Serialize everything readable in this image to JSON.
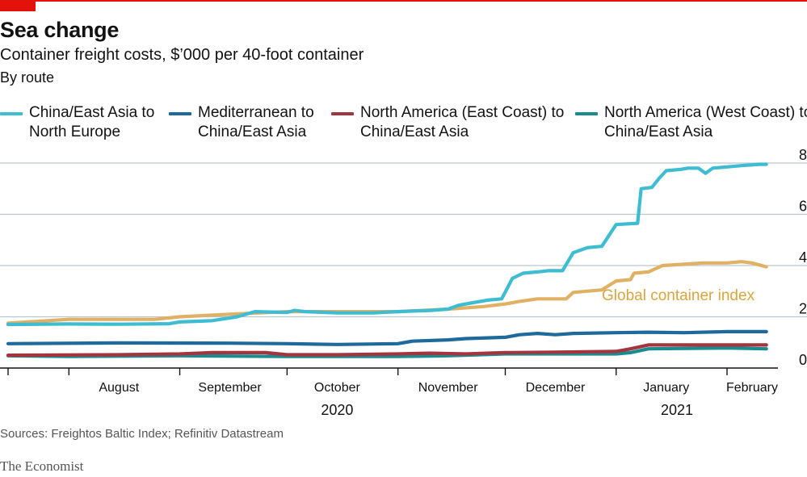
{
  "header": {
    "title": "Sea change",
    "subtitle": "Container freight costs, $’000 per 40-foot container",
    "byline": "By route"
  },
  "footer": {
    "source": "Sources: Freightos Baltic Index; Refinitiv Datastream",
    "brand": "The Economist"
  },
  "colors": {
    "accent": "#e3120b",
    "grid": "#b7c6cf",
    "axis": "#121212"
  },
  "chart_data": {
    "type": "line",
    "title": "Sea change",
    "subtitle": "Container freight costs, $’000 per 40-foot container",
    "ylim": [
      0,
      8
    ],
    "y_ticks": [
      0,
      2,
      4,
      6,
      8
    ],
    "y_axis_side": "right",
    "grid": "horizontal",
    "x_range": [
      "2020-07-15",
      "2021-02-15"
    ],
    "month_boundaries": [
      "2020-08-01",
      "2020-09-01",
      "2020-10-01",
      "2020-11-01",
      "2020-12-01",
      "2021-01-01",
      "2021-02-01"
    ],
    "month_labels": [
      {
        "label": "August",
        "date": "2020-08-15"
      },
      {
        "label": "September",
        "date": "2020-09-15"
      },
      {
        "label": "October",
        "date": "2020-10-15"
      },
      {
        "label": "November",
        "date": "2020-11-15"
      },
      {
        "label": "December",
        "date": "2020-12-15"
      },
      {
        "label": "January",
        "date": "2021-01-15"
      },
      {
        "label": "February",
        "date": "2021-02-08"
      }
    ],
    "year_labels": [
      {
        "label": "2020",
        "date": "2020-10-15"
      },
      {
        "label": "2021",
        "date": "2021-01-18"
      }
    ],
    "legend_position": "top",
    "series": [
      {
        "name": "China/East Asia to North Europe",
        "legend_lines": [
          "China/East Asia to",
          "North Europe"
        ],
        "color": "#3ebcd2",
        "points": [
          [
            "2020-07-15",
            1.7
          ],
          [
            "2020-08-01",
            1.72
          ],
          [
            "2020-08-15",
            1.71
          ],
          [
            "2020-08-29",
            1.73
          ],
          [
            "2020-09-01",
            1.8
          ],
          [
            "2020-09-10",
            1.85
          ],
          [
            "2020-09-17",
            2.0
          ],
          [
            "2020-09-22",
            2.2
          ],
          [
            "2020-10-01",
            2.17
          ],
          [
            "2020-10-03",
            2.25
          ],
          [
            "2020-10-06",
            2.2
          ],
          [
            "2020-10-15",
            2.15
          ],
          [
            "2020-10-25",
            2.15
          ],
          [
            "2020-11-01",
            2.2
          ],
          [
            "2020-11-10",
            2.25
          ],
          [
            "2020-11-15",
            2.3
          ],
          [
            "2020-11-18",
            2.45
          ],
          [
            "2020-11-22",
            2.55
          ],
          [
            "2020-11-26",
            2.65
          ],
          [
            "2020-11-30",
            2.7
          ],
          [
            "2020-12-03",
            3.5
          ],
          [
            "2020-12-06",
            3.7
          ],
          [
            "2020-12-10",
            3.75
          ],
          [
            "2020-12-13",
            3.8
          ],
          [
            "2020-12-17",
            3.8
          ],
          [
            "2020-12-20",
            4.5
          ],
          [
            "2020-12-24",
            4.7
          ],
          [
            "2020-12-28",
            4.75
          ],
          [
            "2021-01-01",
            5.6
          ],
          [
            "2021-01-07",
            5.65
          ],
          [
            "2021-01-08",
            7.0
          ],
          [
            "2021-01-11",
            7.05
          ],
          [
            "2021-01-13",
            7.4
          ],
          [
            "2021-01-15",
            7.7
          ],
          [
            "2021-01-19",
            7.75
          ],
          [
            "2021-01-21",
            7.8
          ],
          [
            "2021-01-24",
            7.8
          ],
          [
            "2021-01-26",
            7.6
          ],
          [
            "2021-01-28",
            7.8
          ],
          [
            "2021-02-01",
            7.85
          ],
          [
            "2021-02-05",
            7.9
          ],
          [
            "2021-02-10",
            7.95
          ],
          [
            "2021-02-12",
            7.95
          ]
        ]
      },
      {
        "name": "Mediterranean to China/East Asia",
        "legend_lines": [
          "Mediterranean to",
          "China/East Asia"
        ],
        "color": "#1f6a9c",
        "points": [
          [
            "2020-07-15",
            0.95
          ],
          [
            "2020-08-15",
            0.98
          ],
          [
            "2020-09-15",
            0.97
          ],
          [
            "2020-10-01",
            0.95
          ],
          [
            "2020-10-15",
            0.92
          ],
          [
            "2020-11-01",
            0.95
          ],
          [
            "2020-11-05",
            1.05
          ],
          [
            "2020-11-15",
            1.1
          ],
          [
            "2020-11-20",
            1.15
          ],
          [
            "2020-12-01",
            1.2
          ],
          [
            "2020-12-05",
            1.3
          ],
          [
            "2020-12-10",
            1.35
          ],
          [
            "2020-12-15",
            1.3
          ],
          [
            "2020-12-20",
            1.35
          ],
          [
            "2021-01-01",
            1.38
          ],
          [
            "2021-01-10",
            1.4
          ],
          [
            "2021-01-20",
            1.38
          ],
          [
            "2021-02-01",
            1.42
          ],
          [
            "2021-02-12",
            1.42
          ]
        ]
      },
      {
        "name": "North America (East Coast) to China/East Asia",
        "legend_lines": [
          "North America (East Coast) to",
          "China/East Asia"
        ],
        "color": "#a4343d",
        "points": [
          [
            "2020-07-15",
            0.5
          ],
          [
            "2020-08-15",
            0.52
          ],
          [
            "2020-09-01",
            0.55
          ],
          [
            "2020-09-10",
            0.6
          ],
          [
            "2020-09-25",
            0.6
          ],
          [
            "2020-10-01",
            0.52
          ],
          [
            "2020-10-15",
            0.52
          ],
          [
            "2020-11-01",
            0.55
          ],
          [
            "2020-11-10",
            0.58
          ],
          [
            "2020-11-20",
            0.55
          ],
          [
            "2020-12-01",
            0.6
          ],
          [
            "2020-12-15",
            0.62
          ],
          [
            "2021-01-01",
            0.65
          ],
          [
            "2021-01-05",
            0.75
          ],
          [
            "2021-01-10",
            0.9
          ],
          [
            "2021-02-12",
            0.9
          ]
        ]
      },
      {
        "name": "North America (West Coast) to China/East Asia",
        "legend_lines": [
          "North America (West Coast) to",
          "China/East Asia"
        ],
        "color": "#1a8c8f",
        "points": [
          [
            "2020-07-15",
            0.48
          ],
          [
            "2020-08-01",
            0.45
          ],
          [
            "2020-09-01",
            0.48
          ],
          [
            "2020-10-01",
            0.45
          ],
          [
            "2020-11-01",
            0.45
          ],
          [
            "2020-11-15",
            0.48
          ],
          [
            "2020-12-01",
            0.55
          ],
          [
            "2020-12-15",
            0.55
          ],
          [
            "2021-01-01",
            0.55
          ],
          [
            "2021-01-05",
            0.6
          ],
          [
            "2021-01-10",
            0.75
          ],
          [
            "2021-02-01",
            0.78
          ],
          [
            "2021-02-12",
            0.75
          ]
        ]
      },
      {
        "name": "Global container index",
        "inline_label": "Global container index",
        "label_date": "2021-01-01",
        "label_value": 2.45,
        "color": "#e0b165",
        "points": [
          [
            "2020-07-15",
            1.75
          ],
          [
            "2020-08-01",
            1.9
          ],
          [
            "2020-08-25",
            1.9
          ],
          [
            "2020-09-01",
            2.0
          ],
          [
            "2020-09-15",
            2.1
          ],
          [
            "2020-10-01",
            2.2
          ],
          [
            "2020-11-01",
            2.2
          ],
          [
            "2020-11-15",
            2.3
          ],
          [
            "2020-11-25",
            2.4
          ],
          [
            "2020-12-01",
            2.5
          ],
          [
            "2020-12-05",
            2.6
          ],
          [
            "2020-12-10",
            2.7
          ],
          [
            "2020-12-18",
            2.7
          ],
          [
            "2020-12-20",
            2.95
          ],
          [
            "2020-12-28",
            3.05
          ],
          [
            "2021-01-01",
            3.4
          ],
          [
            "2021-01-05",
            3.45
          ],
          [
            "2021-01-06",
            3.7
          ],
          [
            "2021-01-10",
            3.75
          ],
          [
            "2021-01-14",
            4.0
          ],
          [
            "2021-01-20",
            4.05
          ],
          [
            "2021-01-25",
            4.1
          ],
          [
            "2021-02-01",
            4.1
          ],
          [
            "2021-02-05",
            4.15
          ],
          [
            "2021-02-08",
            4.1
          ],
          [
            "2021-02-12",
            3.95
          ]
        ]
      }
    ]
  }
}
